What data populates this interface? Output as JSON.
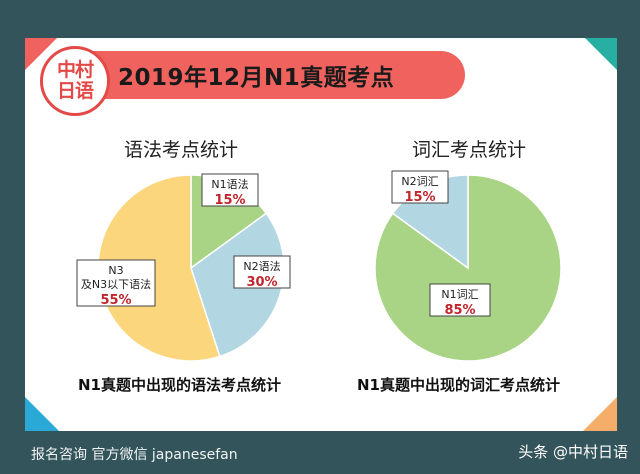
{
  "banner": {
    "title": "2019年12月N1真题考点"
  },
  "logo": {
    "line1": "中村",
    "line2": "日语"
  },
  "charts_text": {
    "grammar_title": "语法考点统计",
    "vocab_title": "词汇考点统计",
    "grammar_caption": "N1真题中出现的语法考点统计",
    "vocab_caption": "N1真题中出现的词汇考点统计"
  },
  "footer": {
    "left": "报名咨询 官方微信 japanesefan",
    "right": "头条 @中村日语"
  },
  "colors": {
    "green": "#a9d486",
    "blue": "#b2d6e2",
    "yellow": "#fbd67d",
    "accent_red": "#c0262c",
    "banner_red": "#f0625e"
  },
  "chart_data": [
    {
      "type": "pie",
      "title": "语法考点统计",
      "caption": "N1真题中出现的语法考点统计",
      "slices": [
        {
          "label": "N1语法",
          "value": 15,
          "value_label": "15%",
          "color": "#a9d486"
        },
        {
          "label": "N2语法",
          "value": 30,
          "value_label": "30%",
          "color": "#b2d6e2"
        },
        {
          "label": "N3及N3以下语法",
          "value": 55,
          "value_label": "55%",
          "color": "#fbd67d"
        }
      ]
    },
    {
      "type": "pie",
      "title": "词汇考点统计",
      "caption": "N1真题中出现的词汇考点统计",
      "slices": [
        {
          "label": "N1词汇",
          "value": 85,
          "value_label": "85%",
          "color": "#a9d486"
        },
        {
          "label": "N2词汇",
          "value": 15,
          "value_label": "15%",
          "color": "#b2d6e2"
        }
      ]
    }
  ]
}
